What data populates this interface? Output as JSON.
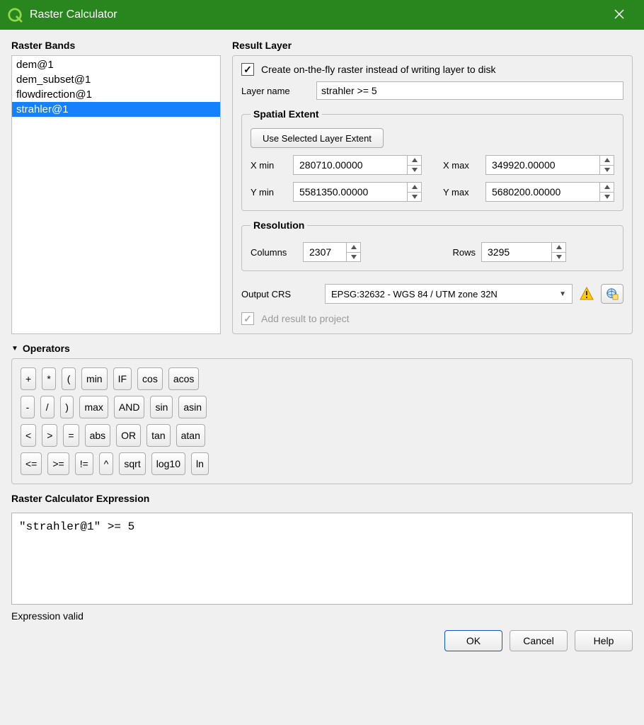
{
  "window": {
    "title": "Raster Calculator",
    "accent_color": "#29861e"
  },
  "raster_bands": {
    "heading": "Raster Bands",
    "items": [
      "dem@1",
      "dem_subset@1",
      "flowdirection@1",
      "strahler@1"
    ],
    "selected_index": 3
  },
  "result_layer": {
    "heading": "Result Layer",
    "create_on_fly_label": "Create on-the-fly raster instead of writing layer to disk",
    "create_on_fly_checked": true,
    "layer_name_label": "Layer name",
    "layer_name_value": "strahler >= 5",
    "spatial_extent": {
      "legend": "Spatial Extent",
      "use_selected_btn": "Use Selected Layer Extent",
      "xmin_label": "X min",
      "xmin": "280710.00000",
      "xmax_label": "X max",
      "xmax": "349920.00000",
      "ymin_label": "Y min",
      "ymin": "5581350.00000",
      "ymax_label": "Y max",
      "ymax": "5680200.00000"
    },
    "resolution": {
      "legend": "Resolution",
      "columns_label": "Columns",
      "columns": "2307",
      "rows_label": "Rows",
      "rows": "3295"
    },
    "output_crs_label": "Output CRS",
    "output_crs_value": "EPSG:32632 - WGS 84 / UTM zone 32N",
    "add_result_label": "Add result to project",
    "add_result_checked": true,
    "add_result_disabled": true
  },
  "operators": {
    "heading": "Operators",
    "rows": [
      [
        "+",
        "*",
        "(",
        "min",
        "IF",
        "cos",
        "acos"
      ],
      [
        "-",
        "/",
        ")",
        "max",
        "AND",
        "sin",
        "asin"
      ],
      [
        "<",
        ">",
        "=",
        "abs",
        "OR",
        "tan",
        "atan"
      ],
      [
        "<=",
        ">=",
        "!=",
        "^",
        "sqrt",
        "log10",
        "ln"
      ]
    ]
  },
  "expression": {
    "heading": "Raster Calculator Expression",
    "text": "\"strahler@1\" >= 5"
  },
  "status_text": "Expression valid",
  "buttons": {
    "ok": "OK",
    "cancel": "Cancel",
    "help": "Help"
  }
}
